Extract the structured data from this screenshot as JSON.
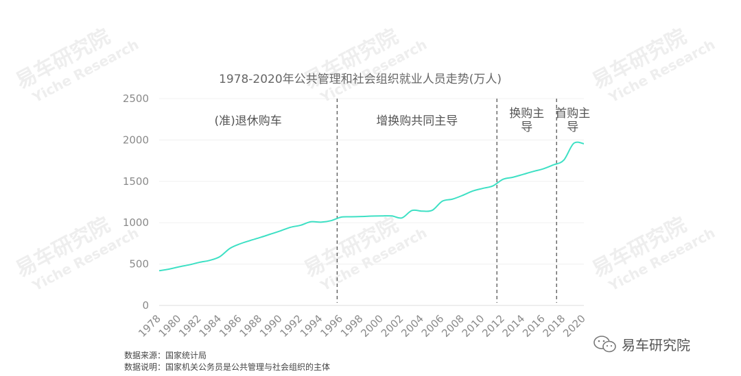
{
  "watermark": {
    "cn": "易车研究院",
    "en": "Yiche Research"
  },
  "chart_data": {
    "type": "line",
    "title": "1978-2020年公共管理和社会组织就业人员走势(万人)",
    "xlabel": "",
    "ylabel": "",
    "xlim": [
      1978,
      2020
    ],
    "ylim": [
      0,
      2500
    ],
    "y_ticks": [
      0,
      500,
      1000,
      1500,
      2000,
      2500
    ],
    "x_tick_labels": [
      "1978",
      "1980",
      "1982",
      "1984",
      "1986",
      "1988",
      "1990",
      "1992",
      "1994",
      "1996",
      "1998",
      "2000",
      "2002",
      "2004",
      "2006",
      "2008",
      "2010",
      "2012",
      "2014",
      "2016",
      "2018",
      "2020"
    ],
    "grid": true,
    "line_color": "#3de0c4",
    "series": [
      {
        "x": [
          1978,
          1979,
          1980,
          1981,
          1982,
          1983,
          1984,
          1985,
          1986,
          1987,
          1988,
          1989,
          1990,
          1991,
          1992,
          1993,
          1994,
          1995,
          1996,
          1997,
          1998,
          1999,
          2000,
          2001,
          2002,
          2003,
          2004,
          2005,
          2006,
          2007,
          2008,
          2009,
          2010,
          2011,
          2012,
          2013,
          2014,
          2015,
          2016,
          2017,
          2018,
          2019,
          2020
        ],
        "values": [
          420,
          440,
          468,
          492,
          522,
          545,
          590,
          690,
          745,
          785,
          822,
          862,
          902,
          945,
          970,
          1012,
          1007,
          1025,
          1068,
          1072,
          1075,
          1080,
          1082,
          1082,
          1058,
          1148,
          1140,
          1150,
          1260,
          1285,
          1330,
          1383,
          1415,
          1445,
          1525,
          1550,
          1585,
          1620,
          1652,
          1700,
          1755,
          1960,
          1955
        ]
      }
    ],
    "regions": [
      {
        "label": "(准)退休购车",
        "start": 1978,
        "end": 1995.6
      },
      {
        "label": "增换购共同主导",
        "start": 1995.6,
        "end": 2011.4
      },
      {
        "label_lines": [
          "换购主",
          "导"
        ],
        "start": 2011.4,
        "end": 2017.3
      },
      {
        "label_lines": [
          "首购主",
          "导"
        ],
        "start": 2017.3,
        "end": 2020.5
      }
    ],
    "dividers": [
      1995.6,
      2011.4,
      2017.3
    ]
  },
  "footnotes": {
    "source": "数据来源：国家统计局",
    "note": "数据说明：国家机关公务员是公共管理与社会组织的主体"
  },
  "brand": {
    "name": "易车研究院",
    "icon": "wechat-icon"
  }
}
